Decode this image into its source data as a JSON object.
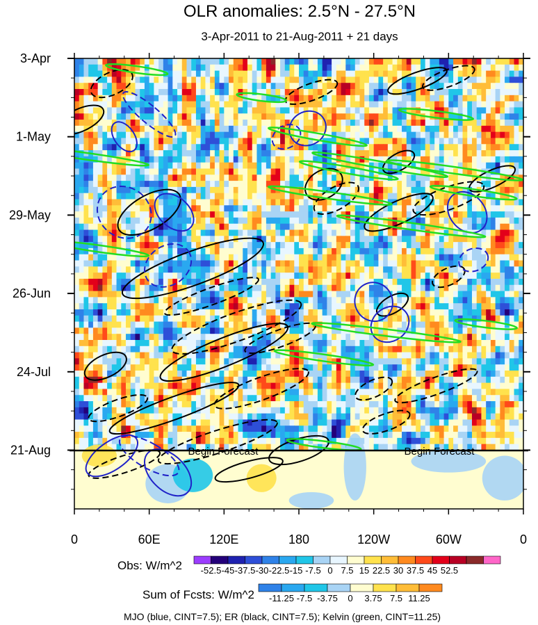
{
  "chart_data": {
    "type": "heatmap",
    "title": "OLR anomalies: 2.5°N - 27.5°N",
    "subtitle": "3-Apr-2011 to 21-Aug-2011 + 21 days",
    "x_axis": {
      "ticks": [
        "0",
        "60E",
        "120E",
        "180",
        "120W",
        "60W",
        "0"
      ],
      "longitudes": [
        0,
        60,
        120,
        180,
        240,
        300,
        360
      ],
      "range": [
        0,
        360
      ]
    },
    "y_axis": {
      "ticks": [
        "3-Apr",
        "1-May",
        "29-May",
        "26-Jun",
        "24-Jul",
        "21-Aug"
      ],
      "day_offsets": [
        0,
        28,
        56,
        84,
        112,
        140
      ],
      "range_days": [
        0,
        161
      ],
      "forecast_start_day": 140
    },
    "forecast_labels": [
      "Begin Forecast",
      "Begin Forecast"
    ],
    "obs_colorbar": {
      "title": "Obs: W/m^2",
      "labels": [
        "-52.5",
        "-45",
        "-37.5",
        "-30",
        "-22.5",
        "-15",
        "-7.5",
        "0",
        "7.5",
        "15",
        "22.5",
        "30",
        "37.5",
        "45",
        "52.5"
      ],
      "colors": [
        "#9c3dff",
        "#24007a",
        "#1f22b0",
        "#2e4fd8",
        "#2f82e8",
        "#2aa8f0",
        "#20c6e8",
        "#a9d4f5",
        "#e8f6ff",
        "#fffdd0",
        "#ffe24d",
        "#ffbd38",
        "#ff8a1f",
        "#ff4a1a",
        "#e3001a",
        "#b80024",
        "#8a2a2a",
        "#ff66c8"
      ]
    },
    "fcst_colorbar": {
      "title": "Sum of Fcsts: W/m^2",
      "labels": [
        "-11.25",
        "-7.5",
        "-3.75",
        "0",
        "3.75",
        "7.5",
        "11.25"
      ],
      "colors": [
        "#2f82e8",
        "#2aa8f0",
        "#20c6e8",
        "#a9d4f5",
        "#fffdd0",
        "#ffe24d",
        "#ffbd38",
        "#ff8a1f"
      ]
    },
    "footnote": "MJO (blue, CINT=7.5); ER (black, CINT=7.5); Kelvin (green, CINT=11.25)",
    "contour_colors": {
      "mjo": "#1f22c8",
      "er": "#000000",
      "kelvin": "#22dd22"
    }
  }
}
